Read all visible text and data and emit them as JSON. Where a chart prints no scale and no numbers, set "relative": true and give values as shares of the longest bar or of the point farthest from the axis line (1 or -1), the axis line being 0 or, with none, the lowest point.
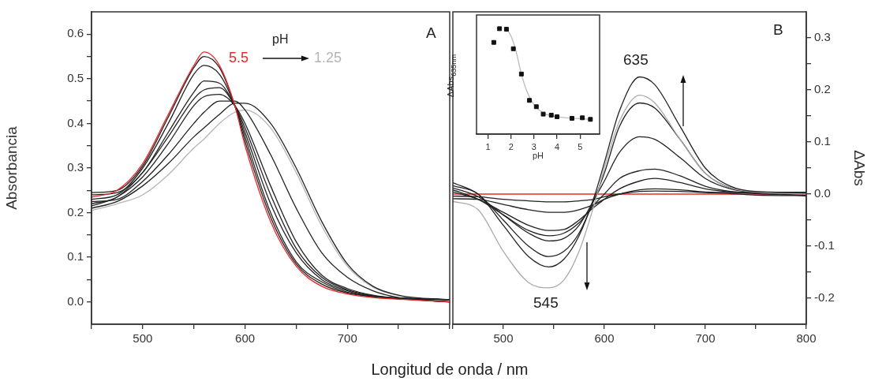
{
  "chart_data": [
    {
      "type": "line",
      "xlabel": "Longitud de onda / nm",
      "ylabel": "Absorbancia",
      "annotations": [
        "A",
        "5.5",
        "pH",
        "1.25"
      ],
      "x": [
        450,
        475,
        500,
        525,
        550,
        560,
        575,
        590,
        600,
        625,
        650,
        675,
        700,
        725,
        750,
        800
      ],
      "xlim": [
        450,
        800
      ],
      "xticks": [
        {
          "value": 450,
          "label": null
        },
        500,
        {
          "value": 550,
          "label": null
        },
        600,
        {
          "value": 650,
          "label": null
        },
        700,
        {
          "value": 750,
          "label": null
        },
        {
          "value": 800,
          "label": null
        }
      ],
      "ylim": [
        -0.05,
        0.65
      ],
      "yticks": [
        {
          "value": 0,
          "label": "0.0"
        },
        {
          "value": 0.05,
          "label": null
        },
        0.1,
        {
          "value": 0.15,
          "label": null
        },
        0.2,
        {
          "value": 0.25,
          "label": null
        },
        0.3,
        {
          "value": 0.35,
          "label": null
        },
        0.4,
        {
          "value": 0.45,
          "label": null
        },
        0.5,
        {
          "value": 0.55,
          "label": null
        },
        0.6
      ],
      "grid": false,
      "legend": false,
      "marker": "none",
      "line_style": "solid",
      "series": [
        {
          "color": "#e8282a",
          "values": [
            0.235,
            0.25,
            0.31,
            0.42,
            0.53,
            0.56,
            0.53,
            0.44,
            0.35,
            0.18,
            0.08,
            0.035,
            0.018,
            0.01,
            0.006,
            0.0
          ]
        },
        {
          "color": "#222222",
          "values": [
            0.245,
            0.25,
            0.305,
            0.414,
            0.525,
            0.55,
            0.525,
            0.44,
            0.36,
            0.19,
            0.085,
            0.04,
            0.02,
            0.012,
            0.007,
            0.0
          ]
        },
        {
          "color": "#222222",
          "values": [
            0.23,
            0.24,
            0.3,
            0.4,
            0.51,
            0.53,
            0.51,
            0.44,
            0.37,
            0.2,
            0.09,
            0.045,
            0.022,
            0.012,
            0.008,
            0.005
          ]
        },
        {
          "color": "#222222",
          "values": [
            0.24,
            0.245,
            0.29,
            0.38,
            0.47,
            0.495,
            0.49,
            0.44,
            0.38,
            0.22,
            0.11,
            0.05,
            0.025,
            0.013,
            0.009,
            0.005
          ]
        },
        {
          "color": "#222222",
          "values": [
            0.22,
            0.235,
            0.29,
            0.37,
            0.455,
            0.475,
            0.48,
            0.44,
            0.39,
            0.24,
            0.12,
            0.055,
            0.027,
            0.014,
            0.009,
            0.005
          ]
        },
        {
          "color": "#222222",
          "values": [
            0.215,
            0.235,
            0.28,
            0.355,
            0.44,
            0.46,
            0.465,
            0.44,
            0.4,
            0.26,
            0.135,
            0.06,
            0.03,
            0.015,
            0.008,
            0.0
          ]
        },
        {
          "color": "#222222",
          "values": [
            0.225,
            0.23,
            0.27,
            0.33,
            0.4,
            0.425,
            0.45,
            0.45,
            0.43,
            0.33,
            0.21,
            0.11,
            0.055,
            0.025,
            0.01,
            0.0
          ]
        },
        {
          "color": "#222222",
          "values": [
            0.21,
            0.225,
            0.26,
            0.31,
            0.37,
            0.39,
            0.42,
            0.445,
            0.445,
            0.4,
            0.3,
            0.18,
            0.085,
            0.035,
            0.015,
            0.005
          ]
        },
        {
          "color": "#b4b4b4",
          "values": [
            0.205,
            0.22,
            0.24,
            0.285,
            0.345,
            0.365,
            0.4,
            0.425,
            0.43,
            0.39,
            0.29,
            0.17,
            0.08,
            0.033,
            0.014,
            0.0
          ]
        }
      ]
    },
    {
      "type": "line",
      "y2label": "ΔAbs",
      "annotations": [
        "B",
        "635",
        "545"
      ],
      "x": [
        450,
        475,
        500,
        525,
        545,
        560,
        575,
        590,
        600,
        615,
        635,
        650,
        675,
        700,
        725,
        750,
        800
      ],
      "xlim": [
        450,
        800
      ],
      "xticks": [
        {
          "value": 450,
          "label": null
        },
        500,
        {
          "value": 550,
          "label": null
        },
        600,
        {
          "value": 650,
          "label": null
        },
        700,
        {
          "value": 750,
          "label": null
        },
        800
      ],
      "y2lim": [
        -0.25,
        0.35
      ],
      "y2ticks": [
        -0.2,
        {
          "value": -0.15,
          "label": null
        },
        -0.1,
        {
          "value": -0.05,
          "label": null
        },
        {
          "value": 0,
          "label": "0.0"
        },
        {
          "value": 0.05,
          "label": null
        },
        0.1,
        {
          "value": 0.15,
          "label": null
        },
        0.2,
        {
          "value": 0.25,
          "label": null
        },
        0.3
      ],
      "grid": false,
      "legend": false,
      "marker": "none",
      "line_style": "solid",
      "series": [
        {
          "color": "#222222",
          "axis": "y2",
          "values": [
            0.016,
            0.0,
            -0.06,
            -0.12,
            -0.14,
            -0.125,
            -0.08,
            -0.005,
            0.06,
            0.16,
            0.225,
            0.21,
            0.13,
            0.05,
            0.015,
            0.005,
            0.003
          ]
        },
        {
          "color": "#aaaaaa",
          "axis": "y2",
          "values": [
            -0.014,
            -0.03,
            -0.11,
            -0.17,
            -0.18,
            -0.165,
            -0.11,
            -0.02,
            0.05,
            0.14,
            0.19,
            0.175,
            0.105,
            0.04,
            0.012,
            0.004,
            0.0
          ]
        },
        {
          "color": "#222222",
          "axis": "y2",
          "values": [
            0.022,
            0.0,
            -0.05,
            -0.1,
            -0.12,
            -0.11,
            -0.075,
            -0.01,
            0.04,
            0.13,
            0.175,
            0.165,
            0.105,
            0.04,
            0.012,
            0.004,
            0.0
          ]
        },
        {
          "color": "#222222",
          "axis": "y2",
          "values": [
            0.012,
            -0.005,
            -0.04,
            -0.075,
            -0.09,
            -0.085,
            -0.06,
            -0.01,
            0.025,
            0.08,
            0.11,
            0.105,
            0.07,
            0.03,
            0.01,
            0.003,
            -0.003
          ]
        },
        {
          "color": "#222222",
          "axis": "y2",
          "values": [
            0.008,
            -0.01,
            -0.04,
            -0.07,
            -0.08,
            -0.075,
            -0.055,
            -0.02,
            0.0,
            0.03,
            0.045,
            0.048,
            0.035,
            0.015,
            0.005,
            0.003,
            0.003
          ]
        },
        {
          "color": "#222222",
          "axis": "y2",
          "values": [
            0.004,
            -0.01,
            -0.035,
            -0.06,
            -0.07,
            -0.068,
            -0.05,
            -0.025,
            -0.01,
            0.01,
            0.025,
            0.03,
            0.022,
            0.01,
            0.004,
            0.001,
            -0.003
          ]
        },
        {
          "color": "#222222",
          "axis": "y2",
          "values": [
            -0.009,
            -0.01,
            -0.02,
            -0.03,
            -0.035,
            -0.035,
            -0.03,
            -0.02,
            -0.01,
            0.0,
            0.008,
            0.01,
            0.008,
            0.004,
            0.003,
            0.003,
            0.003
          ]
        },
        {
          "color": "#222222",
          "axis": "y2",
          "values": [
            -0.004,
            -0.005,
            -0.01,
            -0.013,
            -0.015,
            -0.015,
            -0.013,
            -0.01,
            -0.005,
            0.0,
            0.005,
            0.006,
            0.005,
            0.003,
            0.001,
            -0.002,
            -0.003
          ]
        },
        {
          "color": "#e8282a",
          "axis": "y2",
          "values": [
            0,
            0,
            0,
            0,
            0,
            0,
            0,
            0,
            0,
            0,
            0,
            0,
            0,
            0,
            0,
            0,
            0
          ]
        }
      ]
    },
    {
      "type": "scatter",
      "xlabel": "pH",
      "ylabel": "ΔAbs$_{635nm}$",
      "relative": true,
      "tick_labels": "x",
      "x": [
        1.25,
        1.5,
        1.8,
        2.1,
        2.45,
        2.8,
        3.1,
        3.4,
        3.75,
        4.0,
        4.65,
        5.1,
        5.45
      ],
      "xlim": [
        0.5,
        5.85
      ],
      "xticks": [
        1,
        2,
        3,
        4,
        5
      ],
      "grid": false,
      "legend": false,
      "series": [
        {
          "color": "#111111",
          "marker": "square",
          "values": [
            0.87,
            1.0,
            0.995,
            0.81,
            0.57,
            0.32,
            0.26,
            0.19,
            0.18,
            0.165,
            0.15,
            0.155,
            0.14
          ]
        },
        {
          "type": "line",
          "marker": "none",
          "color": "#bbbbbb",
          "x": [
            1.8,
            2.0,
            2.2,
            2.45,
            2.7,
            3.0,
            3.4,
            4.0,
            5.45
          ],
          "values": [
            1.0,
            0.93,
            0.8,
            0.57,
            0.4,
            0.28,
            0.2,
            0.165,
            0.14
          ]
        }
      ]
    }
  ]
}
